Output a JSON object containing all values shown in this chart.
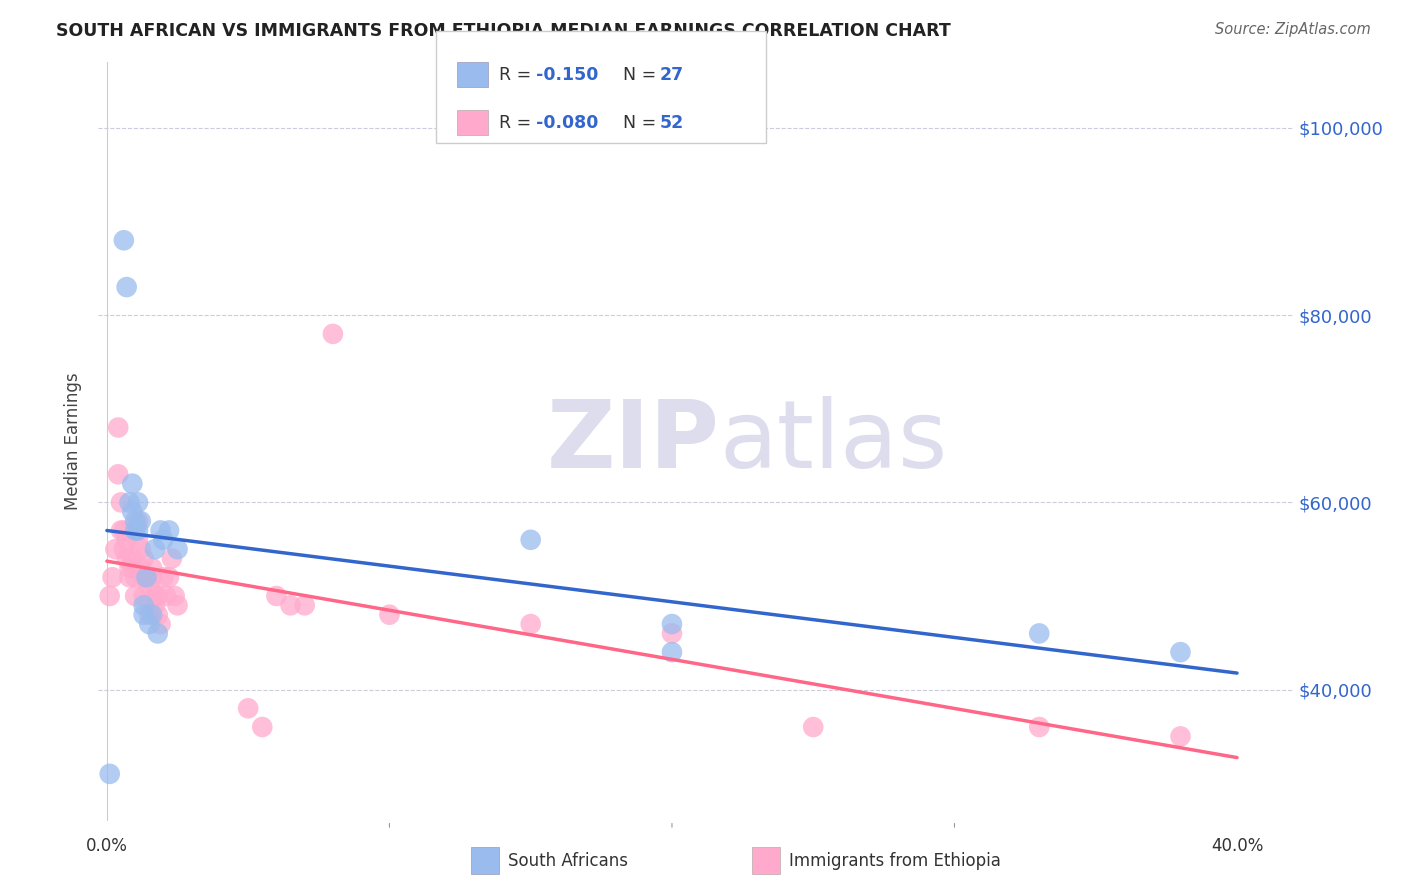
{
  "title": "SOUTH AFRICAN VS IMMIGRANTS FROM ETHIOPIA MEDIAN EARNINGS CORRELATION CHART",
  "source": "Source: ZipAtlas.com",
  "ylabel": "Median Earnings",
  "y_ticks": [
    40000,
    60000,
    80000,
    100000
  ],
  "y_tick_labels": [
    "$40,000",
    "$60,000",
    "$80,000",
    "$100,000"
  ],
  "ylim": [
    26000,
    107000
  ],
  "xlim": [
    -0.003,
    0.42
  ],
  "watermark_zip": "ZIP",
  "watermark_atlas": "atlas",
  "blue_color": "#99BBEE",
  "pink_color": "#FFAACC",
  "trend_blue": "#3366CC",
  "trend_pink": "#FF6688",
  "label_color": "#3366CC",
  "south_africans_x": [
    0.001,
    0.006,
    0.007,
    0.008,
    0.009,
    0.009,
    0.01,
    0.01,
    0.011,
    0.011,
    0.012,
    0.013,
    0.013,
    0.014,
    0.015,
    0.016,
    0.017,
    0.018,
    0.019,
    0.02,
    0.022,
    0.025,
    0.15,
    0.2,
    0.2,
    0.33,
    0.38
  ],
  "south_africans_y": [
    31000,
    88000,
    83000,
    60000,
    62000,
    59000,
    58000,
    57000,
    60000,
    57000,
    58000,
    49000,
    48000,
    52000,
    47000,
    48000,
    55000,
    46000,
    57000,
    56000,
    57000,
    55000,
    56000,
    47000,
    44000,
    46000,
    44000
  ],
  "ethiopia_x": [
    0.001,
    0.002,
    0.003,
    0.004,
    0.004,
    0.005,
    0.005,
    0.006,
    0.006,
    0.007,
    0.007,
    0.008,
    0.008,
    0.009,
    0.009,
    0.01,
    0.01,
    0.011,
    0.011,
    0.012,
    0.012,
    0.013,
    0.013,
    0.013,
    0.014,
    0.015,
    0.015,
    0.016,
    0.016,
    0.017,
    0.017,
    0.018,
    0.018,
    0.019,
    0.02,
    0.021,
    0.022,
    0.023,
    0.024,
    0.025,
    0.05,
    0.055,
    0.06,
    0.065,
    0.07,
    0.08,
    0.1,
    0.15,
    0.2,
    0.25,
    0.33,
    0.38
  ],
  "ethiopia_y": [
    50000,
    52000,
    55000,
    68000,
    63000,
    60000,
    57000,
    57000,
    55000,
    56000,
    54000,
    53000,
    52000,
    54000,
    53000,
    50000,
    52000,
    58000,
    56000,
    55000,
    53000,
    54000,
    52000,
    50000,
    52000,
    51000,
    48000,
    53000,
    52000,
    50000,
    49000,
    50000,
    48000,
    47000,
    52000,
    50000,
    52000,
    54000,
    50000,
    49000,
    38000,
    36000,
    50000,
    49000,
    49000,
    78000,
    48000,
    47000,
    46000,
    36000,
    36000,
    35000
  ]
}
